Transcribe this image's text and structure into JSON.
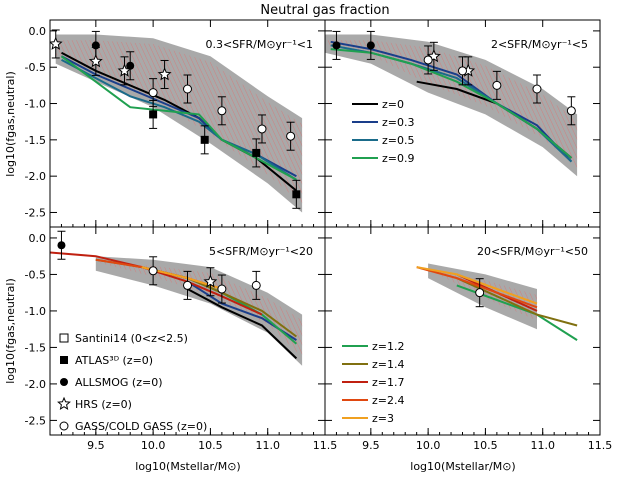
{
  "chart_data": {
    "type": "line",
    "title": "Neutral gas fraction",
    "xlabel": "log10(Mstellar/M⊙)",
    "ylabel": "log10(fgas,neutral)",
    "xlim": [
      9.1,
      11.5
    ],
    "ylim": [
      -2.7,
      0.15
    ],
    "xticks": [
      "9.5",
      "10.0",
      "10.5",
      "11.0",
      "11.5"
    ],
    "yticks": [
      "0.0",
      "-0.5",
      "-1.0",
      "-1.5",
      "-2.0",
      "-2.5"
    ],
    "panels": [
      {
        "label": "0.3<SFR/M⊙yr⁻¹<1",
        "band": {
          "x": [
            9.15,
            9.5,
            10.0,
            10.5,
            11.0,
            11.3
          ],
          "low": [
            -0.45,
            -0.7,
            -1.05,
            -1.55,
            -2.1,
            -2.5
          ],
          "high": [
            -0.05,
            -0.05,
            -0.1,
            -0.35,
            -0.9,
            -1.2
          ]
        },
        "series": [
          {
            "name": "z=0",
            "color": "#000000",
            "x": [
              9.2,
              9.5,
              9.8,
              10.1,
              10.4,
              10.6,
              10.9,
              11.25
            ],
            "y": [
              -0.3,
              -0.55,
              -0.75,
              -0.95,
              -1.2,
              -1.5,
              -1.75,
              -2.2
            ]
          },
          {
            "name": "z=0.3",
            "color": "#1a3e8a",
            "x": [
              9.2,
              9.5,
              9.8,
              10.1,
              10.4,
              10.6,
              10.9,
              11.25
            ],
            "y": [
              -0.35,
              -0.6,
              -0.8,
              -1.0,
              -1.2,
              -1.5,
              -1.7,
              -2.0
            ]
          },
          {
            "name": "z=0.5",
            "color": "#1a6b8a",
            "x": [
              9.2,
              9.5,
              9.8,
              10.1,
              10.4,
              10.6,
              10.9,
              11.25
            ],
            "y": [
              -0.4,
              -0.65,
              -0.9,
              -1.05,
              -1.25,
              -1.5,
              -1.7,
              -2.05
            ]
          },
          {
            "name": "z=0.9",
            "color": "#20a050",
            "x": [
              9.2,
              9.5,
              9.8,
              10.1,
              10.4,
              10.6,
              10.9,
              11.25
            ],
            "y": [
              -0.35,
              -0.7,
              -1.05,
              -1.1,
              -1.15,
              -1.5,
              -1.75,
              -2.05
            ]
          }
        ],
        "points": [
          {
            "marker": "circle",
            "x": 9.5,
            "y": -0.2
          },
          {
            "marker": "circle",
            "x": 9.8,
            "y": -0.48
          },
          {
            "marker": "square",
            "x": 10.0,
            "y": -1.15
          },
          {
            "marker": "square",
            "x": 10.45,
            "y": -1.5
          },
          {
            "marker": "square",
            "x": 10.9,
            "y": -1.68
          },
          {
            "marker": "square",
            "x": 11.25,
            "y": -2.25
          },
          {
            "marker": "star",
            "x": 9.15,
            "y": -0.18
          },
          {
            "marker": "star",
            "x": 9.5,
            "y": -0.42
          },
          {
            "marker": "star",
            "x": 9.75,
            "y": -0.55
          },
          {
            "marker": "star",
            "x": 10.1,
            "y": -0.6
          },
          {
            "marker": "open",
            "x": 10.0,
            "y": -0.85
          },
          {
            "marker": "open",
            "x": 10.3,
            "y": -0.8
          },
          {
            "marker": "open",
            "x": 10.6,
            "y": -1.1
          },
          {
            "marker": "open",
            "x": 10.95,
            "y": -1.35
          },
          {
            "marker": "open",
            "x": 11.2,
            "y": -1.45
          }
        ]
      },
      {
        "label": "2<SFR/M⊙yr⁻¹<5",
        "band": {
          "x": [
            9.1,
            9.5,
            10.0,
            10.5,
            11.0,
            11.3
          ],
          "low": [
            -0.3,
            -0.45,
            -0.85,
            -1.15,
            -1.6,
            -2.0
          ],
          "high": [
            -0.05,
            -0.05,
            -0.15,
            -0.4,
            -0.8,
            -1.15
          ]
        },
        "series": [
          {
            "name": "z=0",
            "color": "#000000",
            "x": [
              9.9,
              10.25,
              10.6,
              10.95,
              11.25
            ],
            "y": [
              -0.7,
              -0.8,
              -1.0,
              -1.35,
              -1.75
            ]
          },
          {
            "name": "z=0.3",
            "color": "#1a3e8a",
            "x": [
              9.15,
              9.5,
              9.85,
              10.25,
              10.6,
              10.95,
              11.25
            ],
            "y": [
              -0.15,
              -0.25,
              -0.4,
              -0.6,
              -1.0,
              -1.3,
              -1.8
            ]
          },
          {
            "name": "z=0.5",
            "color": "#1a6b8a",
            "x": [
              9.15,
              9.5,
              9.85,
              10.25,
              10.6,
              10.95,
              11.25
            ],
            "y": [
              -0.2,
              -0.3,
              -0.45,
              -0.65,
              -1.0,
              -1.35,
              -1.8
            ]
          },
          {
            "name": "z=0.9",
            "color": "#20a050",
            "x": [
              9.15,
              9.5,
              9.85,
              10.25,
              10.6,
              10.95,
              11.25
            ],
            "y": [
              -0.25,
              -0.3,
              -0.45,
              -0.7,
              -1.0,
              -1.35,
              -1.75
            ]
          }
        ],
        "points": [
          {
            "marker": "circle",
            "x": 9.2,
            "y": -0.2
          },
          {
            "marker": "circle",
            "x": 9.5,
            "y": -0.2
          },
          {
            "marker": "star",
            "x": 10.05,
            "y": -0.35
          },
          {
            "marker": "star",
            "x": 10.35,
            "y": -0.55
          },
          {
            "marker": "open",
            "x": 10.0,
            "y": -0.4
          },
          {
            "marker": "open",
            "x": 10.3,
            "y": -0.55
          },
          {
            "marker": "open",
            "x": 10.6,
            "y": -0.75
          },
          {
            "marker": "open",
            "x": 10.95,
            "y": -0.8
          },
          {
            "marker": "open",
            "x": 11.25,
            "y": -1.1
          }
        ]
      },
      {
        "label": "5<SFR/M⊙yr⁻¹<20",
        "band": {
          "x": [
            9.5,
            10.0,
            10.5,
            11.0,
            11.3
          ],
          "low": [
            -0.45,
            -0.65,
            -0.9,
            -1.3,
            -1.75
          ],
          "high": [
            -0.25,
            -0.3,
            -0.4,
            -0.75,
            -1.05
          ]
        },
        "series": [
          {
            "name": "z=0",
            "color": "#000000",
            "x": [
              10.3,
              10.6,
              10.95,
              11.25
            ],
            "y": [
              -0.7,
              -0.95,
              -1.2,
              -1.65
            ]
          },
          {
            "name": "z=0.3",
            "color": "#1a3e8a",
            "x": [
              10.3,
              10.6,
              10.95,
              11.25
            ],
            "y": [
              -0.6,
              -0.9,
              -1.1,
              -1.4
            ]
          },
          {
            "name": "z=0.9",
            "color": "#20a050",
            "x": [
              9.9,
              10.3,
              10.6,
              10.95,
              11.25
            ],
            "y": [
              -0.4,
              -0.55,
              -0.75,
              -1.05,
              -1.45
            ]
          },
          {
            "name": "z=1.4",
            "color": "#807010",
            "x": [
              9.5,
              9.9,
              10.3,
              10.6,
              10.95,
              11.25
            ],
            "y": [
              -0.3,
              -0.4,
              -0.55,
              -0.75,
              -1.0,
              -1.35
            ]
          },
          {
            "name": "z=1.7",
            "color": "#c02010",
            "x": [
              9.1,
              9.5,
              9.9,
              10.3,
              10.6,
              10.95
            ],
            "y": [
              -0.2,
              -0.25,
              -0.4,
              -0.6,
              -0.8,
              -1.05
            ]
          },
          {
            "name": "z=2.4",
            "color": "#e04810",
            "x": [
              9.5,
              9.9,
              10.3,
              10.6
            ],
            "y": [
              -0.3,
              -0.4,
              -0.55,
              -0.7
            ]
          },
          {
            "name": "z=3",
            "color": "#f0a020",
            "x": [
              9.9,
              10.3,
              10.6
            ],
            "y": [
              -0.4,
              -0.55,
              -0.7
            ]
          }
        ],
        "points": [
          {
            "marker": "circle",
            "x": 9.2,
            "y": -0.1
          },
          {
            "marker": "star",
            "x": 10.5,
            "y": -0.6
          },
          {
            "marker": "open",
            "x": 10.0,
            "y": -0.45
          },
          {
            "marker": "open",
            "x": 10.3,
            "y": -0.65
          },
          {
            "marker": "open",
            "x": 10.6,
            "y": -0.7
          },
          {
            "marker": "open",
            "x": 10.9,
            "y": -0.65
          }
        ]
      },
      {
        "label": "20<SFR/M⊙yr⁻¹<50",
        "band": {
          "x": [
            10.0,
            10.5,
            10.95
          ],
          "low": [
            -0.55,
            -0.95,
            -1.25
          ],
          "high": [
            -0.35,
            -0.5,
            -0.7
          ]
        },
        "series": [
          {
            "name": "z=1.2",
            "color": "#20a050",
            "x": [
              10.25,
              10.6,
              10.95,
              11.3
            ],
            "y": [
              -0.65,
              -0.85,
              -1.05,
              -1.4
            ]
          },
          {
            "name": "z=1.4",
            "color": "#807010",
            "x": [
              10.25,
              10.6,
              10.95,
              11.3
            ],
            "y": [
              -0.55,
              -0.8,
              -1.05,
              -1.2
            ]
          },
          {
            "name": "z=1.7",
            "color": "#c02010",
            "x": [
              10.25,
              10.6,
              10.95
            ],
            "y": [
              -0.5,
              -0.75,
              -1.0
            ]
          },
          {
            "name": "z=2.4",
            "color": "#e04810",
            "x": [
              9.9,
              10.25,
              10.6,
              10.95
            ],
            "y": [
              -0.4,
              -0.55,
              -0.75,
              -0.95
            ]
          },
          {
            "name": "z=3",
            "color": "#f0a020",
            "x": [
              9.9,
              10.25,
              10.6,
              10.95
            ],
            "y": [
              -0.4,
              -0.5,
              -0.7,
              -0.9
            ]
          }
        ],
        "points": [
          {
            "marker": "open",
            "x": 10.45,
            "y": -0.75
          }
        ]
      }
    ],
    "legend_redshift_top": [
      "z=0",
      "z=0.3",
      "z=0.5",
      "z=0.9"
    ],
    "legend_redshift_bottom": [
      "z=1.2",
      "z=1.4",
      "z=1.7",
      "z=2.4",
      "z=3"
    ],
    "legend_symbols": [
      {
        "marker": "square-open",
        "label": "Santini14 (0<z<2.5)"
      },
      {
        "marker": "square",
        "label": "ATLAS³ᴰ (z=0)"
      },
      {
        "marker": "circle",
        "label": "ALLSMOG (z=0)"
      },
      {
        "marker": "star",
        "label": "HRS (z=0)"
      },
      {
        "marker": "open",
        "label": "GASS/COLD GASS (z=0)"
      }
    ]
  }
}
